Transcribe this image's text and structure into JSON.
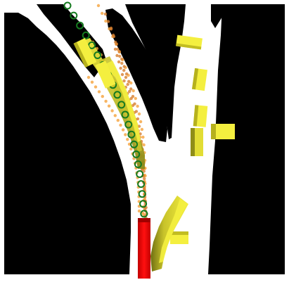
{
  "scene": {
    "background_color": "#ffffff",
    "obstacle_color": "#000000",
    "ego_color": "#ee0000",
    "agent_color": "#f4ef3f",
    "agent_shade_color": "#8f8d18",
    "expert_path_color": "#157a1f",
    "predicted_path_color": "#f5a23c",
    "predicted_path_dark_color": "#d77f2f"
  }
}
